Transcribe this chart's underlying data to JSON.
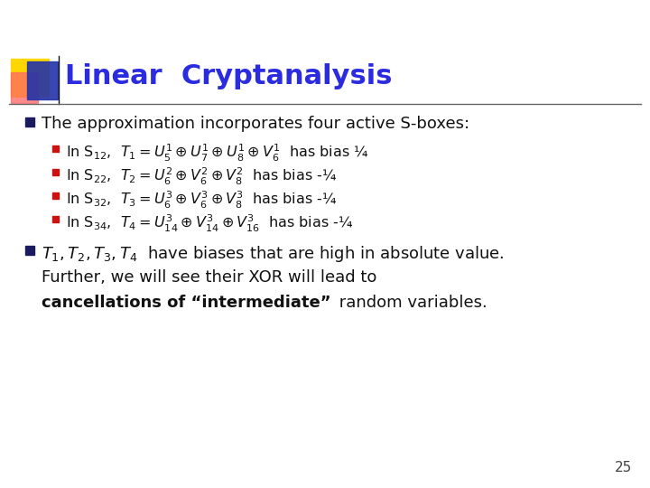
{
  "title": "Linear  Cryptanalysis",
  "title_color": "#2B2BE0",
  "bg_color": "#FFFFFF",
  "slide_number": "25",
  "bullet1": "The approximation incorporates four active S-boxes:",
  "accent_colors": {
    "yellow": "#FFD700",
    "red_pink": "#FF6666",
    "blue": "#2233AA"
  },
  "line_color": "#666666",
  "bullet_dark": "#1a1a5e",
  "sub_bullet_color": "#CC1111",
  "text_color": "#111111",
  "bold_text_color": "#111111"
}
